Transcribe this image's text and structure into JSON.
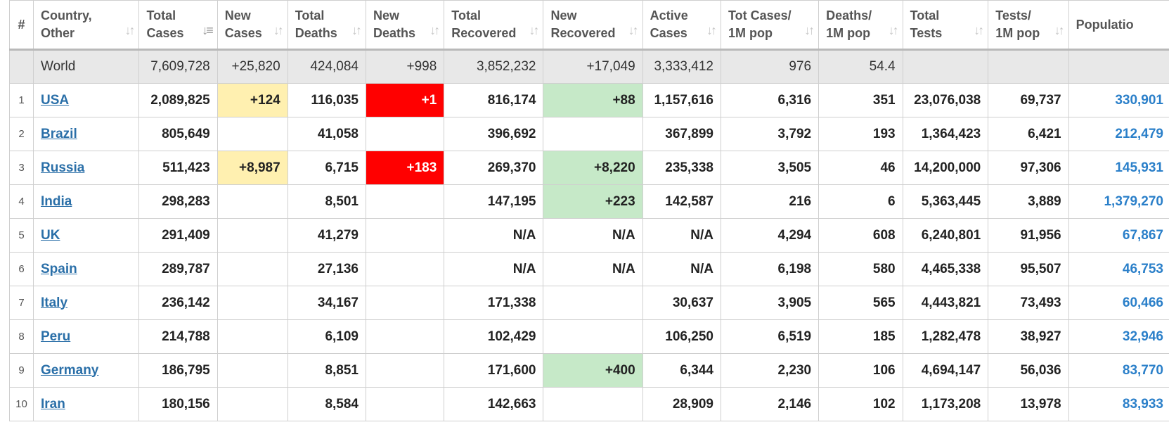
{
  "table": {
    "headers": [
      {
        "l1": "#",
        "l2": ""
      },
      {
        "l1": "Country,",
        "l2": "Other"
      },
      {
        "l1": "Total",
        "l2": "Cases"
      },
      {
        "l1": "New",
        "l2": "Cases"
      },
      {
        "l1": "Total",
        "l2": "Deaths"
      },
      {
        "l1": "New",
        "l2": "Deaths"
      },
      {
        "l1": "Total",
        "l2": "Recovered"
      },
      {
        "l1": "New",
        "l2": "Recovered"
      },
      {
        "l1": "Active",
        "l2": "Cases"
      },
      {
        "l1": "Tot Cases/",
        "l2": "1M pop"
      },
      {
        "l1": "Deaths/",
        "l2": "1M pop"
      },
      {
        "l1": "Total",
        "l2": "Tests"
      },
      {
        "l1": "Tests/",
        "l2": "1M pop"
      },
      {
        "l1": "Populatio",
        "l2": ""
      }
    ],
    "world": {
      "country": "World",
      "total_cases": "7,609,728",
      "new_cases": "+25,820",
      "total_deaths": "424,084",
      "new_deaths": "+998",
      "total_recovered": "3,852,232",
      "new_recovered": "+17,049",
      "active_cases": "3,333,412",
      "cases_per_1m": "976",
      "deaths_per_1m": "54.4",
      "total_tests": "",
      "tests_per_1m": "",
      "population": ""
    },
    "rows": [
      {
        "idx": "1",
        "country": "USA",
        "total_cases": "2,089,825",
        "new_cases": "+124",
        "total_deaths": "116,035",
        "new_deaths": "+1",
        "total_recovered": "816,174",
        "new_recovered": "+88",
        "active_cases": "1,157,616",
        "cases_per_1m": "6,316",
        "deaths_per_1m": "351",
        "total_tests": "23,076,038",
        "tests_per_1m": "69,737",
        "population": "330,901"
      },
      {
        "idx": "2",
        "country": "Brazil",
        "total_cases": "805,649",
        "new_cases": "",
        "total_deaths": "41,058",
        "new_deaths": "",
        "total_recovered": "396,692",
        "new_recovered": "",
        "active_cases": "367,899",
        "cases_per_1m": "3,792",
        "deaths_per_1m": "193",
        "total_tests": "1,364,423",
        "tests_per_1m": "6,421",
        "population": "212,479"
      },
      {
        "idx": "3",
        "country": "Russia",
        "total_cases": "511,423",
        "new_cases": "+8,987",
        "total_deaths": "6,715",
        "new_deaths": "+183",
        "total_recovered": "269,370",
        "new_recovered": "+8,220",
        "active_cases": "235,338",
        "cases_per_1m": "3,505",
        "deaths_per_1m": "46",
        "total_tests": "14,200,000",
        "tests_per_1m": "97,306",
        "population": "145,931"
      },
      {
        "idx": "4",
        "country": "India",
        "total_cases": "298,283",
        "new_cases": "",
        "total_deaths": "8,501",
        "new_deaths": "",
        "total_recovered": "147,195",
        "new_recovered": "+223",
        "active_cases": "142,587",
        "cases_per_1m": "216",
        "deaths_per_1m": "6",
        "total_tests": "5,363,445",
        "tests_per_1m": "3,889",
        "population": "1,379,270"
      },
      {
        "idx": "5",
        "country": "UK",
        "total_cases": "291,409",
        "new_cases": "",
        "total_deaths": "41,279",
        "new_deaths": "",
        "total_recovered": "N/A",
        "new_recovered": "N/A",
        "active_cases": "N/A",
        "cases_per_1m": "4,294",
        "deaths_per_1m": "608",
        "total_tests": "6,240,801",
        "tests_per_1m": "91,956",
        "population": "67,867"
      },
      {
        "idx": "6",
        "country": "Spain",
        "total_cases": "289,787",
        "new_cases": "",
        "total_deaths": "27,136",
        "new_deaths": "",
        "total_recovered": "N/A",
        "new_recovered": "N/A",
        "active_cases": "N/A",
        "cases_per_1m": "6,198",
        "deaths_per_1m": "580",
        "total_tests": "4,465,338",
        "tests_per_1m": "95,507",
        "population": "46,753"
      },
      {
        "idx": "7",
        "country": "Italy",
        "total_cases": "236,142",
        "new_cases": "",
        "total_deaths": "34,167",
        "new_deaths": "",
        "total_recovered": "171,338",
        "new_recovered": "",
        "active_cases": "30,637",
        "cases_per_1m": "3,905",
        "deaths_per_1m": "565",
        "total_tests": "4,443,821",
        "tests_per_1m": "73,493",
        "population": "60,466"
      },
      {
        "idx": "8",
        "country": "Peru",
        "total_cases": "214,788",
        "new_cases": "",
        "total_deaths": "6,109",
        "new_deaths": "",
        "total_recovered": "102,429",
        "new_recovered": "",
        "active_cases": "106,250",
        "cases_per_1m": "6,519",
        "deaths_per_1m": "185",
        "total_tests": "1,282,478",
        "tests_per_1m": "38,927",
        "population": "32,946"
      },
      {
        "idx": "9",
        "country": "Germany",
        "total_cases": "186,795",
        "new_cases": "",
        "total_deaths": "8,851",
        "new_deaths": "",
        "total_recovered": "171,600",
        "new_recovered": "+400",
        "active_cases": "6,344",
        "cases_per_1m": "2,230",
        "deaths_per_1m": "106",
        "total_tests": "4,694,147",
        "tests_per_1m": "56,036",
        "population": "83,770"
      },
      {
        "idx": "10",
        "country": "Iran",
        "total_cases": "180,156",
        "new_cases": "",
        "total_deaths": "8,584",
        "new_deaths": "",
        "total_recovered": "142,663",
        "new_recovered": "",
        "active_cases": "28,909",
        "cases_per_1m": "2,146",
        "deaths_per_1m": "102",
        "total_tests": "1,173,208",
        "tests_per_1m": "13,978",
        "population": "83,933"
      }
    ]
  },
  "highlight_colors": {
    "new_cases": "#fff0b0",
    "new_deaths": "#ff0000",
    "new_recovered": "#c6e9c8",
    "link": "#2a6fa8",
    "population": "#2a7fc9"
  },
  "icons": {
    "sort": "sort-arrows-icon",
    "sort_active": "sort-descending-icon"
  }
}
